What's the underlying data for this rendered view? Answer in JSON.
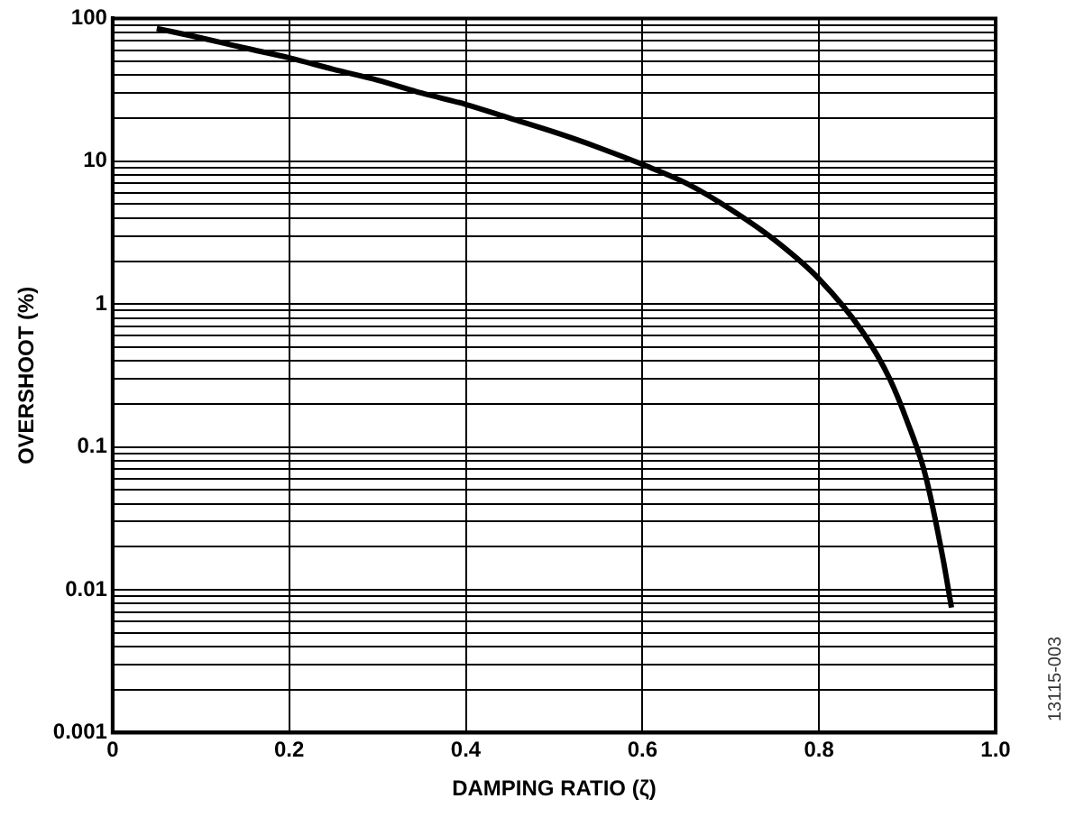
{
  "chart_data": {
    "type": "line",
    "xlabel": "DAMPING RATIO (ζ)",
    "ylabel": "OVERSHOOT (%)",
    "annotations": [
      "13115-003"
    ],
    "x": [
      0.05,
      0.1,
      0.15,
      0.2,
      0.25,
      0.3,
      0.35,
      0.4,
      0.45,
      0.5,
      0.55,
      0.6,
      0.65,
      0.7,
      0.75,
      0.8,
      0.85,
      0.88,
      0.9,
      0.92,
      0.94,
      0.95
    ],
    "series": [
      {
        "color": "#000000",
        "values": [
          85,
          73,
          62,
          53,
          44,
          37,
          30,
          25,
          20,
          16,
          12.5,
          9.5,
          7,
          4.6,
          2.8,
          1.5,
          0.63,
          0.3,
          0.15,
          0.065,
          0.017,
          0.0075
        ]
      }
    ],
    "xlim": [
      0,
      1
    ],
    "xticks": [
      0,
      0.2,
      0.4,
      0.6,
      0.8,
      {
        "value": 1,
        "label": "1.0"
      }
    ],
    "ylim": [
      0.001,
      100
    ],
    "log": "y",
    "yticks": [
      0.001,
      {
        "value": 0.002,
        "label": null
      },
      {
        "value": 0.003,
        "label": null
      },
      {
        "value": 0.004,
        "label": null
      },
      {
        "value": 0.005,
        "label": null
      },
      {
        "value": 0.006,
        "label": null
      },
      {
        "value": 0.007,
        "label": null
      },
      {
        "value": 0.008,
        "label": null
      },
      {
        "value": 0.009,
        "label": null
      },
      0.01,
      {
        "value": 0.02,
        "label": null
      },
      {
        "value": 0.03,
        "label": null
      },
      {
        "value": 0.04,
        "label": null
      },
      {
        "value": 0.05,
        "label": null
      },
      {
        "value": 0.06,
        "label": null
      },
      {
        "value": 0.07,
        "label": null
      },
      {
        "value": 0.08,
        "label": null
      },
      {
        "value": 0.09,
        "label": null
      },
      0.1,
      {
        "value": 0.2,
        "label": null
      },
      {
        "value": 0.3,
        "label": null
      },
      {
        "value": 0.4,
        "label": null
      },
      {
        "value": 0.5,
        "label": null
      },
      {
        "value": 0.6,
        "label": null
      },
      {
        "value": 0.7,
        "label": null
      },
      {
        "value": 0.8,
        "label": null
      },
      {
        "value": 0.9,
        "label": null
      },
      1,
      {
        "value": 2,
        "label": null
      },
      {
        "value": 3,
        "label": null
      },
      {
        "value": 4,
        "label": null
      },
      {
        "value": 5,
        "label": null
      },
      {
        "value": 6,
        "label": null
      },
      {
        "value": 7,
        "label": null
      },
      {
        "value": 8,
        "label": null
      },
      {
        "value": 9,
        "label": null
      },
      10,
      {
        "value": 20,
        "label": null
      },
      {
        "value": 30,
        "label": null
      },
      {
        "value": 40,
        "label": null
      },
      {
        "value": 50,
        "label": null
      },
      {
        "value": 60,
        "label": null
      },
      {
        "value": 70,
        "label": null
      },
      {
        "value": 80,
        "label": null
      },
      {
        "value": 90,
        "label": null
      },
      100
    ],
    "grid": true,
    "legend": false,
    "marker": "none",
    "line_style": "solid"
  }
}
